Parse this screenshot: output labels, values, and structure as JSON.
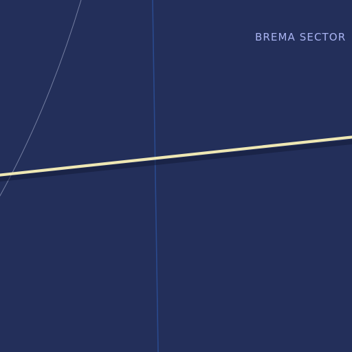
{
  "map": {
    "background_color": "#232f5a",
    "sector_label": "BREMA SECTOR",
    "sector_label_color": "#aab4f2",
    "features": {
      "highway": {
        "type": "highway",
        "color": "#efe8b4",
        "shadow_color": "#141c3a"
      },
      "meridian": {
        "type": "boundary-line",
        "color": "#2a4a8e"
      },
      "orbit_arc": {
        "type": "contour-arc",
        "color": "#8a93b4"
      }
    }
  }
}
